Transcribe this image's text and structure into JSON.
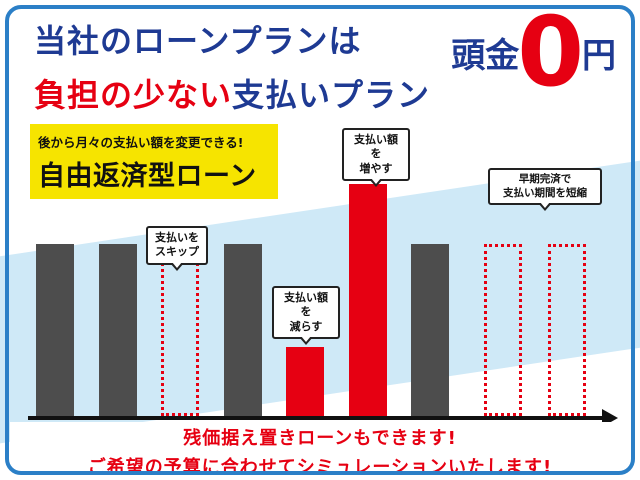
{
  "header": {
    "title_line1": "当社のローンプランは",
    "title_emphasis": "負担の少ない",
    "title_line2_rest": "支払いプラン",
    "down_payment": {
      "label": "頭金",
      "value": "0",
      "unit": "円"
    }
  },
  "badge": {
    "line1": "後から月々の支払い額を変更できる!",
    "line2": "自由返済型ローン"
  },
  "chart_data": {
    "type": "bar",
    "value_scale": "relative-monthly-payment",
    "bars": [
      {
        "style": "solid",
        "color": "#4d4d4d",
        "value": 100
      },
      {
        "style": "solid",
        "color": "#4d4d4d",
        "value": 100
      },
      {
        "style": "dotted",
        "color": "#e60012",
        "value": 100
      },
      {
        "style": "solid",
        "color": "#4d4d4d",
        "value": 100
      },
      {
        "style": "solid",
        "color": "#e60012",
        "value": 40
      },
      {
        "style": "solid",
        "color": "#e60012",
        "value": 135
      },
      {
        "style": "solid",
        "color": "#4d4d4d",
        "value": 100
      },
      {
        "style": "dotted",
        "color": "#e60012",
        "value": 100
      },
      {
        "style": "dotted",
        "color": "#e60012",
        "value": 100
      }
    ],
    "annotations": [
      {
        "bars": [
          3
        ],
        "line1": "支払いを",
        "line2": "スキップ"
      },
      {
        "bars": [
          5
        ],
        "line1": "支払い額を",
        "line2": "減らす"
      },
      {
        "bars": [
          6
        ],
        "line1": "支払い額を",
        "line2": "増やす"
      },
      {
        "bars": [
          8,
          9
        ],
        "line1": "早期完済で",
        "line2": "支払い期間を短縮"
      }
    ],
    "x_axis": {
      "style": "arrow-right"
    },
    "legend": false
  },
  "footer": {
    "line1": "残価据え置きローンもできます!",
    "line2": "ご希望の予算に合わせてシミュレーションいたします!"
  },
  "colors": {
    "title_blue": "#1e3a93",
    "accent_red": "#e60012",
    "bar_gray": "#4d4d4d",
    "badge_yellow": "#f6e400",
    "wave_blue": "#cfe9f7",
    "frame_blue": "#2b7fc7"
  }
}
